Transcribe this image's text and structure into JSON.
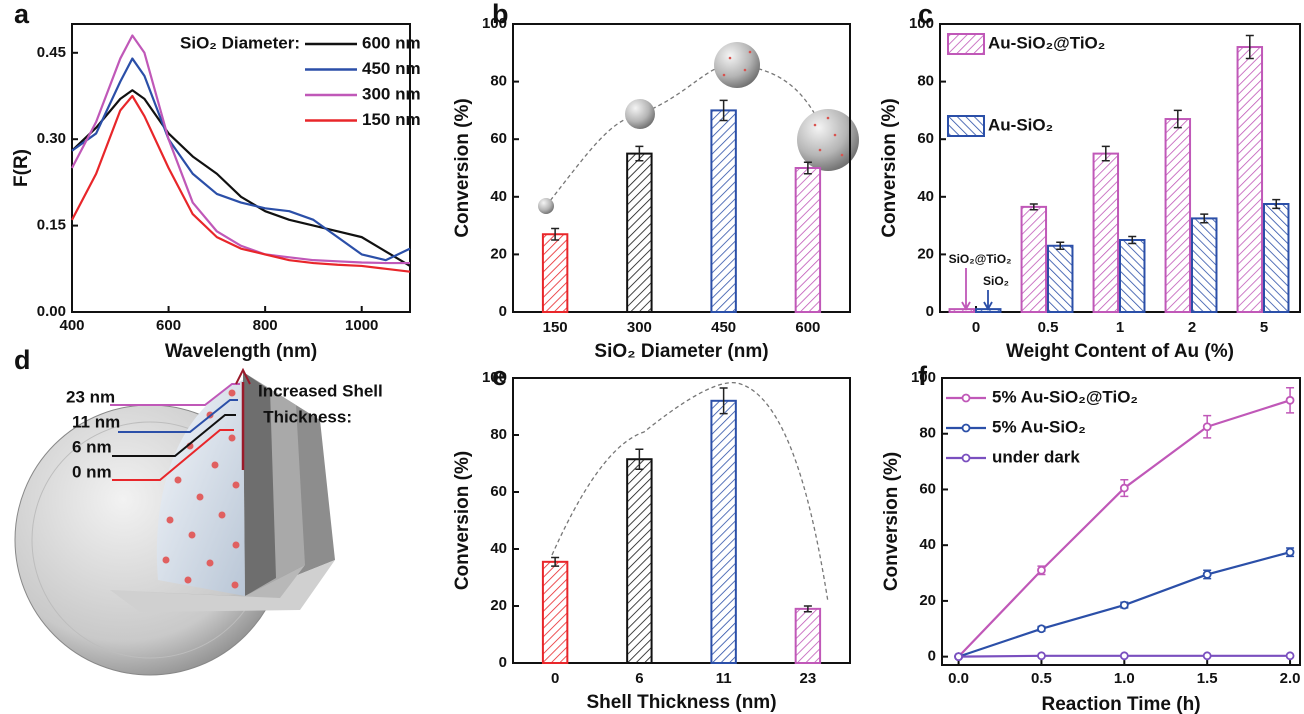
{
  "chart_data": [
    {
      "panel": "a",
      "type": "line",
      "x_label": "Wavelength (nm)",
      "y_label": "F(R)",
      "x": [
        400,
        450,
        500,
        525,
        550,
        600,
        650,
        700,
        750,
        800,
        850,
        900,
        950,
        1000,
        1050,
        1100
      ],
      "xlim": [
        400,
        1100
      ],
      "xticks": [
        400,
        600,
        800,
        1000
      ],
      "ylim": [
        0,
        0.5
      ],
      "yticks": [
        {
          "value": 0,
          "label": "0.00"
        },
        0.15,
        {
          "value": 0.3,
          "label": "0.30"
        },
        0.45
      ],
      "legend": "upper right",
      "legend_title": "SiO₂ Diameter:",
      "series": [
        {
          "name": "600 nm",
          "color": "#111111",
          "values": [
            0.28,
            0.32,
            0.37,
            0.385,
            0.37,
            0.31,
            0.27,
            0.24,
            0.2,
            0.175,
            0.16,
            0.15,
            0.14,
            0.13,
            0.105,
            0.08
          ]
        },
        {
          "name": "450 nm",
          "color": "#2b4fa8",
          "values": [
            0.28,
            0.31,
            0.4,
            0.44,
            0.41,
            0.3,
            0.24,
            0.205,
            0.19,
            0.18,
            0.175,
            0.16,
            0.13,
            0.1,
            0.09,
            0.11
          ]
        },
        {
          "name": "300 nm",
          "color": "#c058b8",
          "values": [
            0.25,
            0.33,
            0.44,
            0.48,
            0.45,
            0.3,
            0.19,
            0.14,
            0.115,
            0.1,
            0.095,
            0.09,
            0.088,
            0.086,
            0.085,
            0.085
          ]
        },
        {
          "name": "150 nm",
          "color": "#e8262a",
          "values": [
            0.16,
            0.24,
            0.35,
            0.375,
            0.34,
            0.25,
            0.17,
            0.13,
            0.11,
            0.1,
            0.09,
            0.085,
            0.082,
            0.08,
            0.075,
            0.07
          ]
        }
      ]
    },
    {
      "panel": "b",
      "type": "bar",
      "x_label": "SiO₂ Diameter (nm)",
      "y_label": "Conversion (%)",
      "categories": [
        "150",
        "300",
        "450",
        "600"
      ],
      "values": [
        27,
        55,
        70,
        50
      ],
      "errors": [
        2,
        2.5,
        3.5,
        2
      ],
      "colors": [
        "#e8262a",
        "#111111",
        "#2b4fa8",
        "#c058b8"
      ],
      "hatch": "/",
      "ylim": [
        0,
        100
      ],
      "yticks": [
        0,
        20,
        40,
        60,
        80,
        100
      ]
    },
    {
      "panel": "c",
      "type": "grouped_bar",
      "x_label": "Weight Content of Au (%)",
      "y_label": "Conversion (%)",
      "categories": [
        "0",
        "0.5",
        "1",
        "2",
        "5"
      ],
      "legend": "upper left",
      "ylim": [
        0,
        100
      ],
      "yticks": [
        0,
        20,
        40,
        60,
        80,
        100
      ],
      "series": [
        {
          "name": "Au-SiO₂@TiO₂",
          "color": "#c058b8",
          "hatch": "/",
          "values": [
            1,
            36.5,
            55,
            67,
            92
          ],
          "errors": [
            0,
            1,
            2.5,
            3,
            4
          ]
        },
        {
          "name": "Au-SiO₂",
          "color": "#2b4fa8",
          "hatch": "\\",
          "values": [
            1,
            23,
            25,
            32.5,
            37.5
          ],
          "errors": [
            0,
            1.2,
            1.2,
            1.5,
            1.5
          ]
        }
      ],
      "annotations": [
        {
          "text": "SiO₂@TiO₂",
          "color": "#c058b8"
        },
        {
          "text": "SiO₂",
          "color": "#2b4fa8"
        }
      ]
    },
    {
      "panel": "e",
      "type": "bar",
      "x_label": "Shell Thickness (nm)",
      "y_label": "Conversion (%)",
      "categories": [
        "0",
        "6",
        "11",
        "23"
      ],
      "values": [
        35.5,
        71.5,
        92,
        19
      ],
      "errors": [
        1.5,
        3.5,
        4.5,
        1
      ],
      "colors": [
        "#e8262a",
        "#111111",
        "#2b4fa8",
        "#c058b8"
      ],
      "hatch": "/",
      "ylim": [
        0,
        100
      ],
      "yticks": [
        0,
        20,
        40,
        60,
        80,
        100
      ]
    },
    {
      "panel": "f",
      "type": "line",
      "markers": true,
      "x_label": "Reaction Time (h)",
      "y_label": "Conversion (%)",
      "x": [
        0,
        0.5,
        1,
        1.5,
        2
      ],
      "xlim": [
        -0.1,
        2.06
      ],
      "xticks": [
        {
          "value": 0,
          "label": "0.0"
        },
        0.5,
        {
          "value": 1,
          "label": "1.0"
        },
        1.5,
        {
          "value": 2,
          "label": "2.0"
        }
      ],
      "ylim": [
        -3,
        100
      ],
      "yticks": [
        0,
        20,
        40,
        60,
        80,
        100
      ],
      "legend": "upper left",
      "series": [
        {
          "name": "5% Au-SiO₂@TiO₂",
          "color": "#c058b8",
          "values": [
            0,
            31,
            60.5,
            82.5,
            92
          ],
          "errors": [
            0,
            1.5,
            3,
            4,
            4.5
          ]
        },
        {
          "name": "5% Au-SiO₂",
          "color": "#2b4fa8",
          "values": [
            0,
            10,
            18.5,
            29.5,
            37.5
          ],
          "errors": [
            0,
            0.8,
            1,
            1.5,
            1.5
          ]
        },
        {
          "name": "under dark",
          "color": "#7a4fbf",
          "values": [
            0,
            0.3,
            0.3,
            0.3,
            0.3
          ],
          "errors": [
            0,
            0,
            0,
            0,
            0
          ]
        }
      ]
    }
  ],
  "illustration": {
    "panel": "d",
    "title_lines": [
      "Increased Shell",
      "Thickness:"
    ],
    "labels": [
      {
        "text": "23 nm",
        "color": "#c058b8"
      },
      {
        "text": "11 nm",
        "color": "#2b4fa8"
      },
      {
        "text": "6 nm",
        "color": "#111111"
      },
      {
        "text": "0 nm",
        "color": "#e8262a"
      }
    ]
  }
}
